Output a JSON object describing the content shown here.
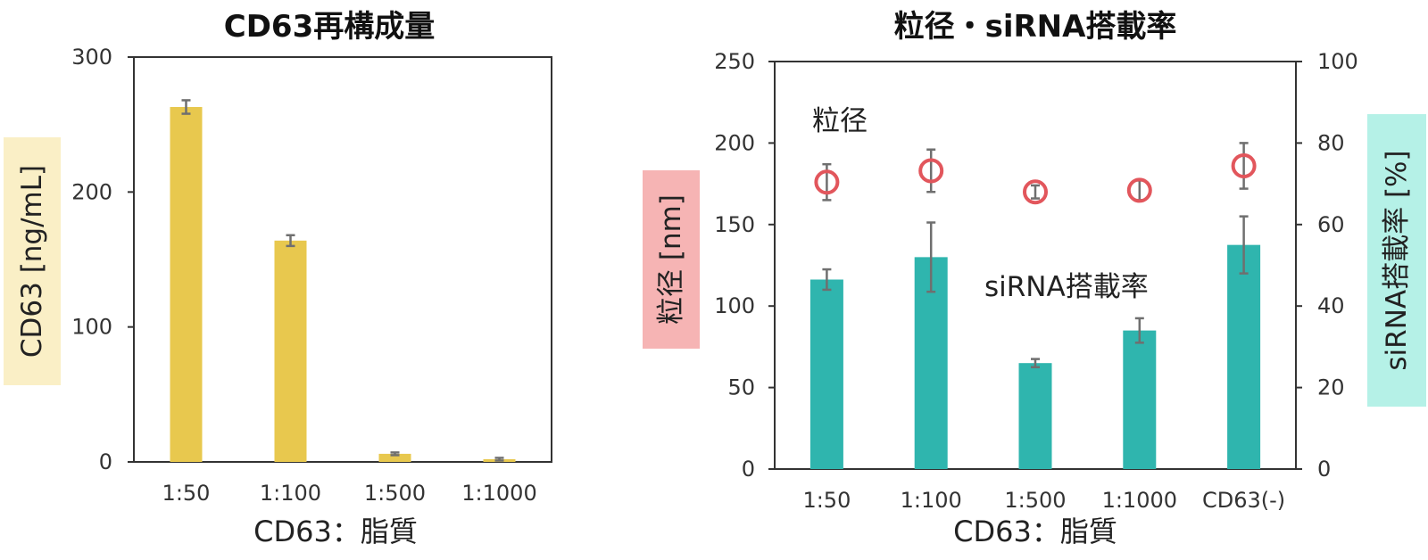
{
  "colors": {
    "left_bar": "#E8C84E",
    "left_ylabel_bg": "#FAEFC6",
    "right_bar": "#2FB5AE",
    "marker": "#E2565C",
    "right_ylabel_left_bg": "#F6B4B4",
    "right_ylabel_right_bg": "#B5F1E7",
    "error_bar": "#6F6F6F",
    "axis": "#333333"
  },
  "chart_data": [
    {
      "type": "bar",
      "title": "CD63再構成量",
      "xlabel": "CD63：脂質",
      "ylabel": "CD63 [ng/mL]",
      "categories": [
        "1:50",
        "1:100",
        "1:500",
        "1:1000"
      ],
      "values": [
        263,
        164,
        6,
        2
      ],
      "errors": [
        5,
        4,
        1,
        1
      ],
      "ylim": [
        0,
        300
      ],
      "yticks": [
        0,
        100,
        200,
        300
      ],
      "grid": false,
      "legend": "none"
    },
    {
      "type": "bar",
      "title": "粒径・siRNA搭載率",
      "xlabel": "CD63：脂質",
      "ylabel_left": "粒径 [nm]",
      "ylabel_right": "siRNA搭載率 [%]",
      "categories": [
        "1:50",
        "1:100",
        "1:500",
        "1:1000",
        "CD63(-)"
      ],
      "ylim_left": [
        0,
        250
      ],
      "yticks_left": [
        0,
        50,
        100,
        150,
        200,
        250
      ],
      "ylim_right": [
        0,
        100
      ],
      "yticks_right": [
        0,
        20,
        40,
        60,
        80,
        100
      ],
      "grid": false,
      "legend": "none",
      "series": [
        {
          "type": "bar",
          "axis": "right",
          "values": [
            46.5,
            52,
            26,
            34,
            55
          ],
          "errors": [
            2.5,
            8.5,
            1,
            3,
            7
          ]
        },
        {
          "type": "scatter",
          "axis": "left",
          "marker": "open-circle",
          "values": [
            176,
            183,
            170,
            171,
            186
          ],
          "errors": [
            11,
            13,
            4,
            6,
            14
          ]
        }
      ],
      "annotations": [
        "粒径",
        "siRNA搭載率"
      ]
    }
  ]
}
